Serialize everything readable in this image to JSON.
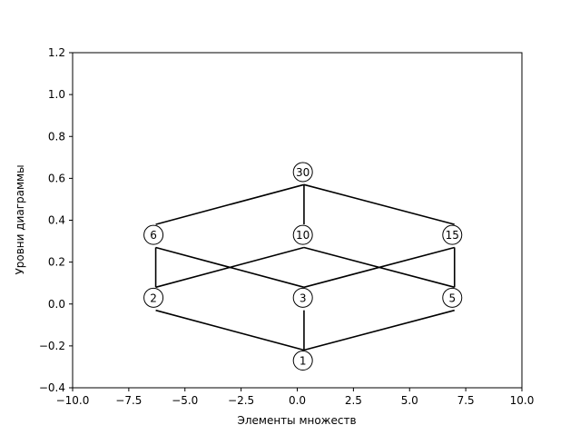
{
  "chart_data": {
    "type": "diagram",
    "title": "",
    "xlabel": "Элементы множеств",
    "ylabel": "Уровни диаграммы",
    "xlim": [
      -10,
      10
    ],
    "ylim": [
      -0.4,
      1.2
    ],
    "xticks": [
      -10.0,
      -7.5,
      -5.0,
      -2.5,
      0.0,
      2.5,
      5.0,
      7.5,
      10.0
    ],
    "xtick_labels": [
      "−10.0",
      "−7.5",
      "−5.0",
      "−2.5",
      "0.0",
      "2.5",
      "5.0",
      "7.5",
      "10.0"
    ],
    "yticks": [
      -0.4,
      -0.2,
      0.0,
      0.2,
      0.4,
      0.6,
      0.8,
      1.0,
      1.2
    ],
    "ytick_labels": [
      "−0.4",
      "−0.2",
      "0.0",
      "0.2",
      "0.4",
      "0.6",
      "0.8",
      "1.0",
      "1.2"
    ],
    "grid": false,
    "nodes": [
      {
        "label": "1",
        "x": 0.25,
        "y": -0.27
      },
      {
        "label": "2",
        "x": -6.4,
        "y": 0.03
      },
      {
        "label": "3",
        "x": 0.25,
        "y": 0.03
      },
      {
        "label": "5",
        "x": 6.9,
        "y": 0.03
      },
      {
        "label": "6",
        "x": -6.4,
        "y": 0.33
      },
      {
        "label": "10",
        "x": 0.25,
        "y": 0.33
      },
      {
        "label": "15",
        "x": 6.9,
        "y": 0.33
      },
      {
        "label": "30",
        "x": 0.25,
        "y": 0.63
      }
    ],
    "edges": [
      {
        "from": [
          0.3,
          -0.22
        ],
        "to": [
          -6.3,
          -0.03
        ]
      },
      {
        "from": [
          0.3,
          -0.22
        ],
        "to": [
          0.3,
          -0.03
        ]
      },
      {
        "from": [
          0.3,
          -0.22
        ],
        "to": [
          7.0,
          -0.03
        ]
      },
      {
        "from": [
          -6.3,
          0.08
        ],
        "to": [
          -6.3,
          0.27
        ]
      },
      {
        "from": [
          -6.3,
          0.08
        ],
        "to": [
          0.3,
          0.27
        ]
      },
      {
        "from": [
          0.3,
          0.08
        ],
        "to": [
          -6.3,
          0.27
        ]
      },
      {
        "from": [
          0.3,
          0.08
        ],
        "to": [
          7.0,
          0.27
        ]
      },
      {
        "from": [
          7.0,
          0.08
        ],
        "to": [
          0.3,
          0.27
        ]
      },
      {
        "from": [
          7.0,
          0.08
        ],
        "to": [
          7.0,
          0.27
        ]
      },
      {
        "from": [
          -6.3,
          0.38
        ],
        "to": [
          0.3,
          0.57
        ]
      },
      {
        "from": [
          0.3,
          0.38
        ],
        "to": [
          0.3,
          0.57
        ]
      },
      {
        "from": [
          7.0,
          0.38
        ],
        "to": [
          0.3,
          0.57
        ]
      }
    ]
  }
}
